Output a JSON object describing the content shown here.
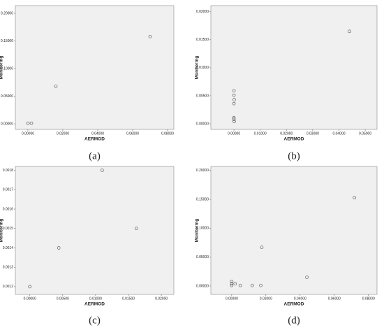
{
  "chart_data": [
    {
      "type": "scatter",
      "caption": "(a)",
      "x_label": "AERMOD",
      "y_label": "Monitoring",
      "color": "#444444",
      "x": [
        0,
        0.002,
        0.016,
        0.07
      ],
      "values": [
        0.001,
        0.001,
        0.068,
        0.158
      ],
      "xlim": [
        -0.0072,
        0.0836
      ],
      "ylim": [
        -0.01,
        0.214
      ],
      "xticks": [
        {
          "value": 0,
          "label": "0.00000"
        },
        {
          "value": 0.02,
          "label": "0.02000"
        },
        {
          "value": 0.04,
          "label": "0.04000"
        },
        {
          "value": 0.06,
          "label": "0.06000"
        },
        {
          "value": 0.08,
          "label": "0.08000"
        }
      ],
      "yticks": [
        {
          "value": 0,
          "label": "0.00000"
        },
        {
          "value": 0.05,
          "label": "0.05000"
        },
        {
          "value": 0.1,
          "label": "0.10000"
        },
        {
          "value": 0.15,
          "label": "0.15000"
        },
        {
          "value": 0.2,
          "label": "0.20000"
        }
      ]
    },
    {
      "type": "scatter",
      "caption": "(b)",
      "x_label": "AERMOD",
      "y_label": "Monitoring",
      "color": "#444444",
      "x": [
        0,
        0,
        0.0001,
        0,
        0,
        0,
        0.0001,
        0.044
      ],
      "values": [
        0.0059,
        0.0051,
        0.0043,
        0.0036,
        0.0011,
        0.0008,
        0.0004,
        0.0165
      ],
      "xlim": [
        -0.0088,
        0.0545
      ],
      "ylim": [
        -0.001,
        0.0211
      ],
      "xticks": [
        {
          "value": 0,
          "label": "0.00000"
        },
        {
          "value": 0.01,
          "label": "0.01000"
        },
        {
          "value": 0.02,
          "label": "0.02000"
        },
        {
          "value": 0.03,
          "label": "0.03000"
        },
        {
          "value": 0.04,
          "label": "0.04000"
        },
        {
          "value": 0.05,
          "label": "0.05000"
        }
      ],
      "yticks": [
        {
          "value": 0,
          "label": "0.00000"
        },
        {
          "value": 0.005,
          "label": "0.00500"
        },
        {
          "value": 0.01,
          "label": "0.01000"
        },
        {
          "value": 0.015,
          "label": "0.01500"
        },
        {
          "value": 0.02,
          "label": "0.02000"
        }
      ]
    },
    {
      "type": "scatter",
      "caption": "(c)",
      "x_label": "AERMOD",
      "y_label": "Monitoring",
      "color": "#444444",
      "x": [
        0,
        0.0044,
        0.011,
        0.0162
      ],
      "values": [
        0.0012,
        0.0014,
        0.0018,
        0.0015
      ],
      "xlim": [
        -0.0022,
        0.0219
      ],
      "ylim": [
        0.00116,
        0.00182
      ],
      "xticks": [
        {
          "value": 0,
          "label": "0.00000"
        },
        {
          "value": 0.005,
          "label": "0.00500"
        },
        {
          "value": 0.01,
          "label": "0.01000"
        },
        {
          "value": 0.015,
          "label": "0.01500"
        },
        {
          "value": 0.02,
          "label": "0.02000"
        }
      ],
      "yticks": [
        0.0012,
        0.0013,
        0.0014,
        0.0015,
        0.0016,
        0.0017,
        0.0018
      ]
    },
    {
      "type": "scatter",
      "caption": "(d)",
      "x_label": "AERMOD",
      "y_label": "Monitoring",
      "color": "#444444",
      "x": [
        0,
        0,
        0,
        0.002,
        0.005,
        0.012,
        0.017,
        0.0176,
        0.044,
        0.0718
      ],
      "values": [
        0.008,
        0.004,
        0.001,
        0.004,
        0.001,
        0.001,
        0.001,
        0.067,
        0.015,
        0.153
      ],
      "xlim": [
        -0.0122,
        0.085
      ],
      "ylim": [
        -0.0146,
        0.207
      ],
      "xticks": [
        {
          "value": 0,
          "label": "0.00000"
        },
        {
          "value": 0.02,
          "label": "0.02000"
        },
        {
          "value": 0.04,
          "label": "0.04000"
        },
        {
          "value": 0.06,
          "label": "0.06000"
        },
        {
          "value": 0.08,
          "label": "0.08000"
        }
      ],
      "yticks": [
        {
          "value": 0,
          "label": "0.00000"
        },
        {
          "value": 0.05,
          "label": "0.05000"
        },
        {
          "value": 0.1,
          "label": "0.10000"
        },
        {
          "value": 0.15,
          "label": "0.15000"
        },
        {
          "value": 0.2,
          "label": "0.20000"
        }
      ]
    }
  ]
}
